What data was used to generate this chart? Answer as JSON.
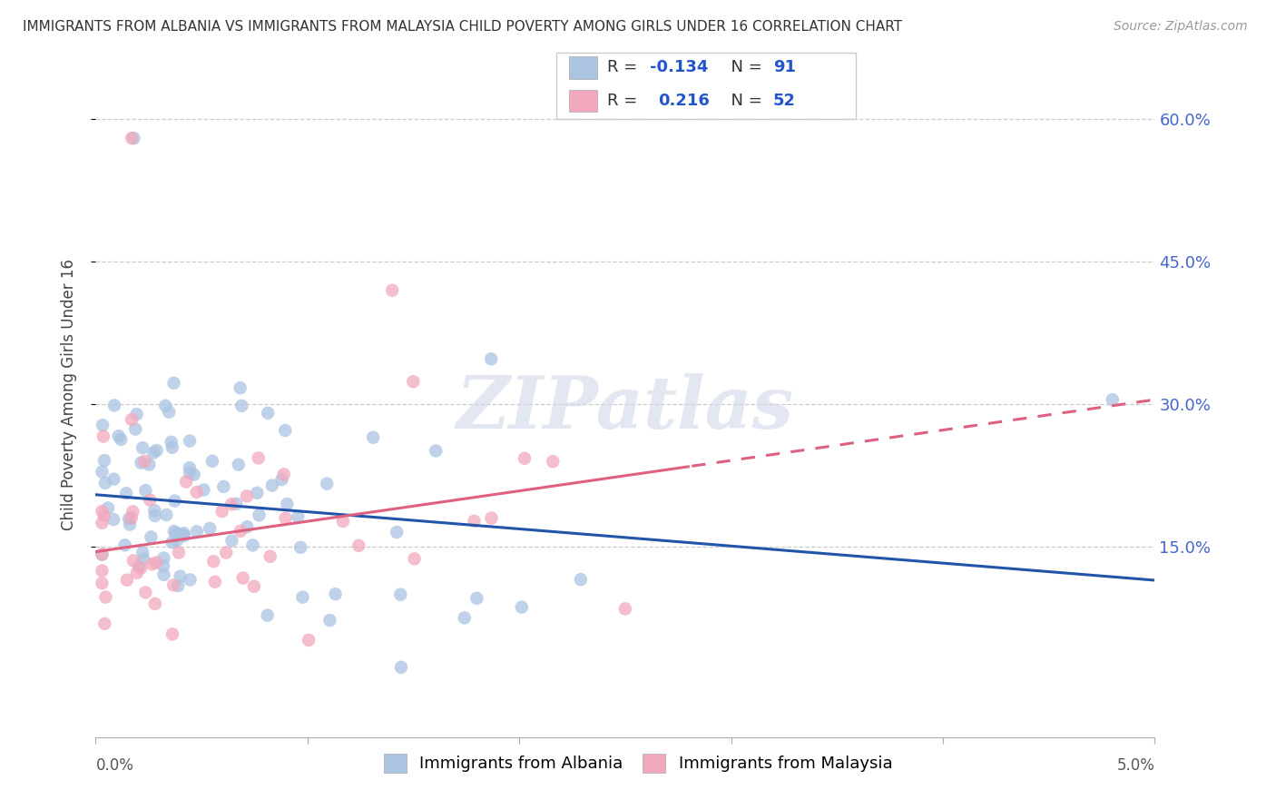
{
  "title": "IMMIGRANTS FROM ALBANIA VS IMMIGRANTS FROM MALAYSIA CHILD POVERTY AMONG GIRLS UNDER 16 CORRELATION CHART",
  "source": "Source: ZipAtlas.com",
  "ylabel": "Child Poverty Among Girls Under 16",
  "ytick_labels": [
    "60.0%",
    "45.0%",
    "30.0%",
    "15.0%"
  ],
  "ytick_values": [
    0.6,
    0.45,
    0.3,
    0.15
  ],
  "xlim": [
    0.0,
    0.05
  ],
  "ylim": [
    -0.05,
    0.67
  ],
  "legend_albania": "Immigrants from Albania",
  "legend_malaysia": "Immigrants from Malaysia",
  "R_albania": -0.134,
  "N_albania": 91,
  "R_malaysia": 0.216,
  "N_malaysia": 52,
  "color_albania": "#aac4e2",
  "color_malaysia": "#f2a8bc",
  "color_trendline_albania": "#2255aa",
  "color_trendline_malaysia": "#e06080",
  "watermark_text": "ZIPatlas",
  "background_color": "#ffffff",
  "grid_color": "#cccccc",
  "slope_albania": -1.8,
  "intercept_albania": 0.205,
  "slope_malaysia": 3.2,
  "intercept_malaysia": 0.145,
  "trendline_cutoff": 0.028
}
